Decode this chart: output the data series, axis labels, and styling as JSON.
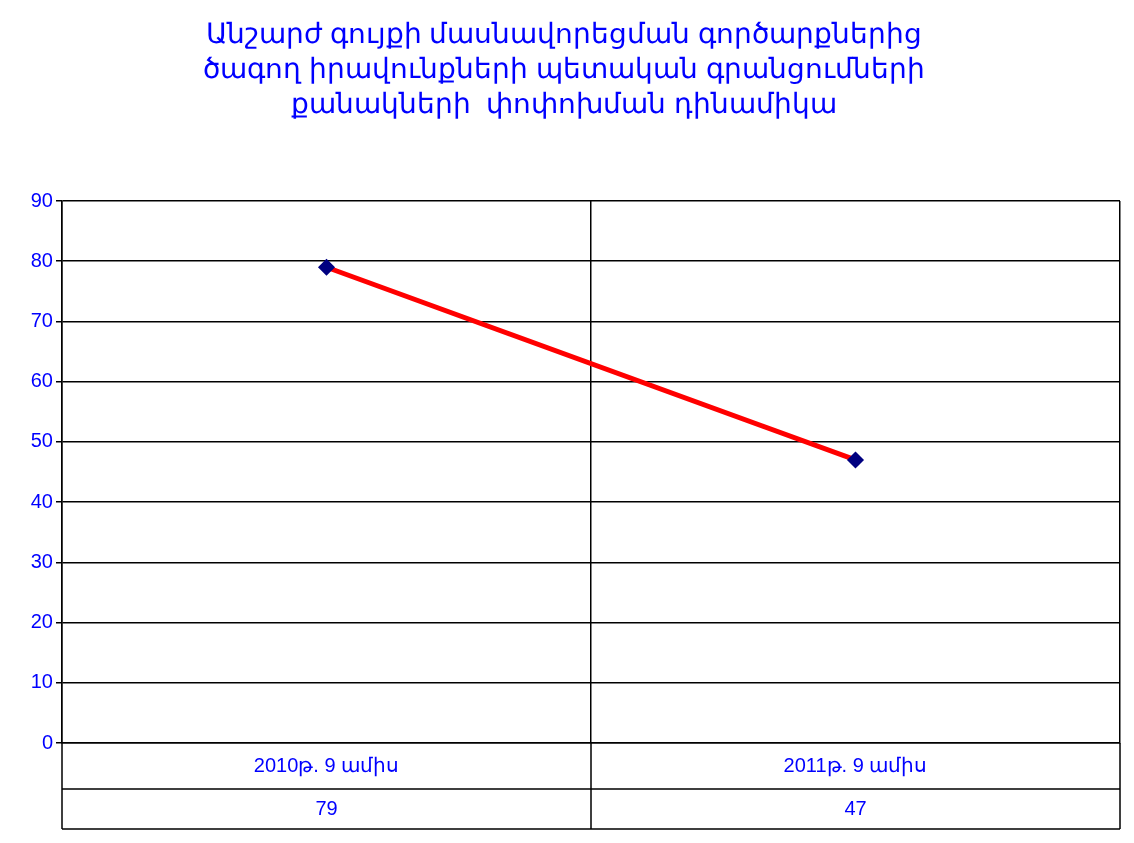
{
  "chart_data": {
    "type": "line",
    "title": "Անշարժ գույքի մասնավորեցման գործարքներից\nծագող իրավունքների պետական գրանցումների\nքանակների  փոփոխման դինամիկա",
    "categories": [
      "2010թ. 9 ամիս",
      "2011թ. 9 ամիս"
    ],
    "series": [
      {
        "color": "#ff0000",
        "values": [
          79,
          47
        ]
      }
    ],
    "ylim": [
      0,
      90
    ],
    "yticks": [
      0,
      10,
      20,
      30,
      40,
      50,
      60,
      70,
      80,
      90
    ],
    "grid": true,
    "legend": false,
    "marker": "diamond",
    "line_style": "solid",
    "data_labels": true
  }
}
